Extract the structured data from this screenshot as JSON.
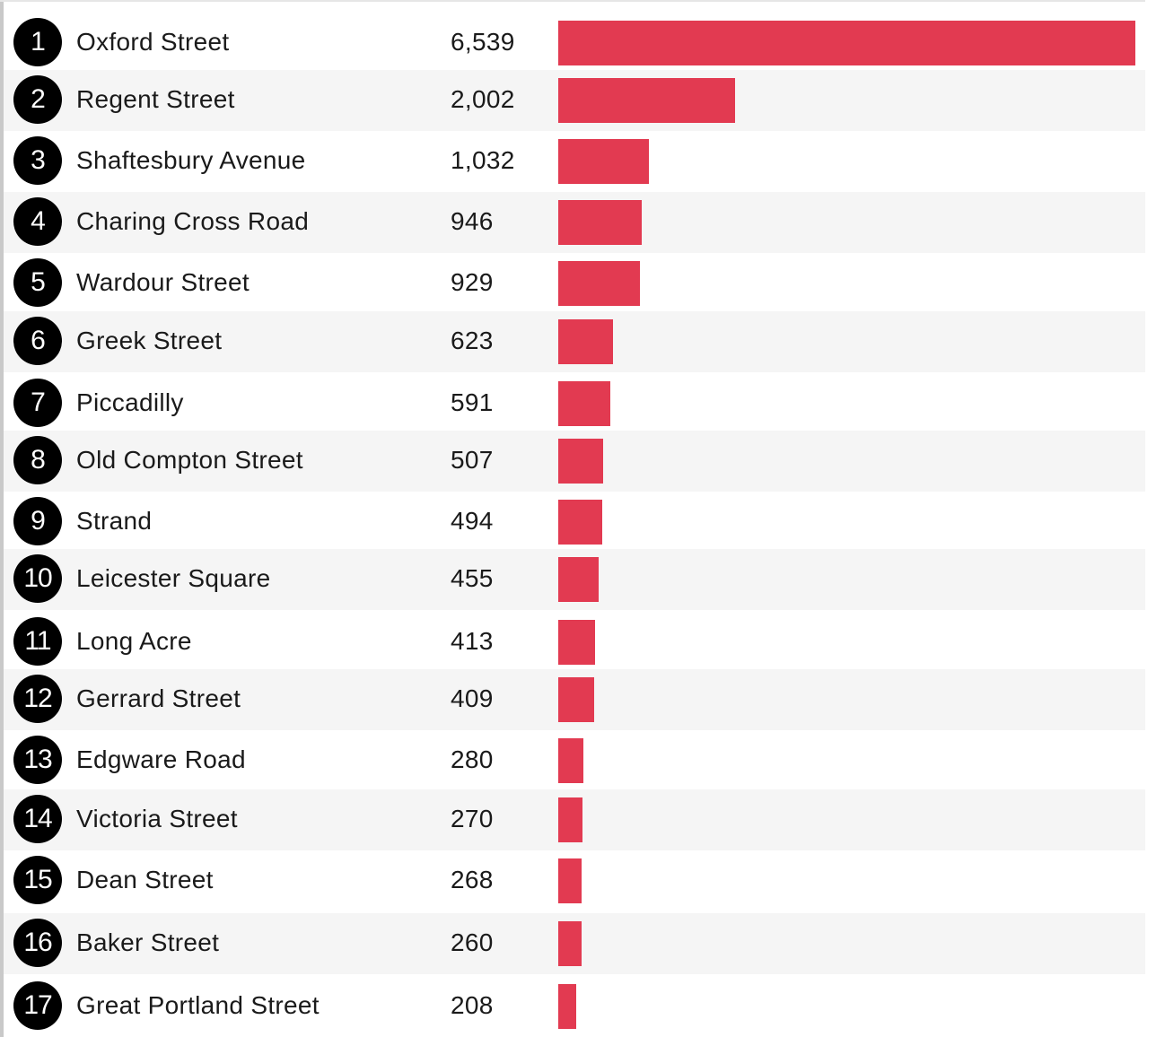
{
  "colors": {
    "bar": "#e23a51",
    "badge": "#000000",
    "row_alt": "#f5f5f5"
  },
  "chart_data": {
    "type": "bar",
    "orientation": "horizontal",
    "title": "",
    "xlabel": "",
    "ylabel": "",
    "xlim": [
      0,
      6539
    ],
    "grid": false,
    "ranks": [
      "1",
      "2",
      "3",
      "4",
      "5",
      "6",
      "7",
      "8",
      "9",
      "10",
      "11",
      "12",
      "13",
      "14",
      "15",
      "16",
      "17"
    ],
    "categories": [
      "Oxford Street",
      "Regent Street",
      "Shaftesbury Avenue",
      "Charing Cross Road",
      "Wardour Street",
      "Greek Street",
      "Piccadilly",
      "Old Compton Street",
      "Strand",
      "Leicester Square",
      "Long Acre",
      "Gerrard Street",
      "Edgware Road",
      "Victoria Street",
      "Dean Street",
      "Baker Street",
      "Great Portland Street"
    ],
    "values": [
      6539,
      2002,
      1032,
      946,
      929,
      623,
      591,
      507,
      494,
      455,
      413,
      409,
      280,
      270,
      268,
      260,
      208
    ],
    "value_labels": [
      "6,539",
      "2,002",
      "1,032",
      "946",
      "929",
      "623",
      "591",
      "507",
      "494",
      "455",
      "413",
      "409",
      "280",
      "270",
      "268",
      "260",
      "208"
    ]
  }
}
